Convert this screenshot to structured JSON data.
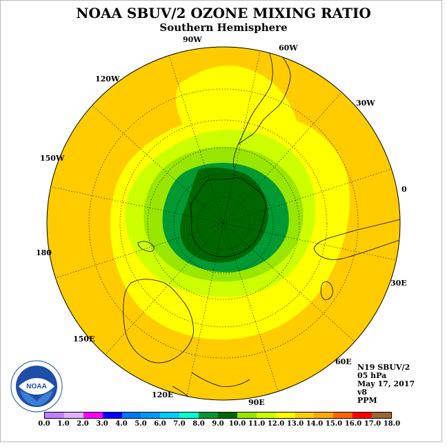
{
  "header": {
    "title": "NOAA SBUV/2 OZONE MIXING RATIO",
    "subtitle": "Southern Hemisphere"
  },
  "map": {
    "projection": "polar stereographic, south pole centered",
    "longitude_labels": [
      "0",
      "30E",
      "60E",
      "90E",
      "120E",
      "150E",
      "180",
      "150W",
      "120W",
      "90W",
      "60W",
      "30W"
    ],
    "colors": {
      "ocean_fill": "#ffcc00",
      "band_12_13": "#ffff00",
      "band_11_12": "#ccff00",
      "band_10_11": "#99e600",
      "band_9_10": "#006600",
      "band_8_9": "#009933",
      "coast": "#000000",
      "grid": "#000000"
    }
  },
  "info": {
    "satellite": "N19 SBUV/2",
    "level": "05 hPa",
    "date": "May 17, 2017",
    "version": "v8",
    "units": "PPM"
  },
  "colorbar": {
    "ticks": [
      "0.0",
      "1.0",
      "2.0",
      "3.0",
      "4.0",
      "5.0",
      "6.0",
      "7.0",
      "8.0",
      "9.0",
      "10.0",
      "11.0",
      "12.0",
      "13.0",
      "14.0",
      "15.0",
      "16.0",
      "17.0",
      "18.0"
    ],
    "colors": [
      "#c080ff",
      "#e0b0ff",
      "#ff00ff",
      "#0000ff",
      "#0077ff",
      "#0099ff",
      "#00ccff",
      "#00ffcc",
      "#009933",
      "#006600",
      "#99e600",
      "#ccff00",
      "#ffff00",
      "#ffcc00",
      "#ffaa00",
      "#ff6600",
      "#ff0000",
      "#996633"
    ]
  },
  "logo": {
    "text": "NOAA",
    "ring_text": "NATIONAL OCEANIC AND ATMOSPHERIC ADMINISTRATION · U.S. DEPARTMENT OF COMMERCE"
  }
}
